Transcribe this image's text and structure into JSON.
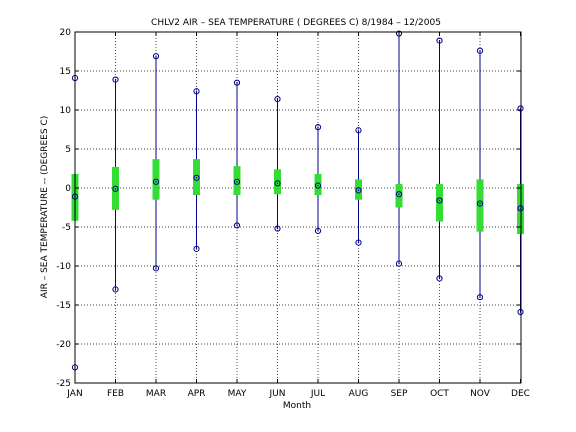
{
  "chart_data": {
    "type": "box",
    "title": "CHLV2  AIR – SEA TEMPERATURE ( DEGREES C) 8/1984 – 12/2005",
    "xlabel": "Month",
    "ylabel": "AIR – SEA TEMPERATURE -- (DEGREES C)",
    "ylim": [
      -25,
      20
    ],
    "yticks": [
      -25,
      -20,
      -15,
      -10,
      -5,
      0,
      5,
      10,
      15,
      20
    ],
    "grid": true,
    "categories": [
      "JAN",
      "FEB",
      "MAR",
      "APR",
      "MAY",
      "JUN",
      "JUL",
      "AUG",
      "SEP",
      "OCT",
      "NOV",
      "DEC"
    ],
    "max": [
      14.1,
      13.9,
      16.9,
      12.4,
      13.5,
      11.4,
      7.8,
      7.4,
      19.8,
      18.9,
      17.6,
      10.2
    ],
    "q3": [
      1.8,
      2.7,
      3.7,
      3.7,
      2.8,
      2.4,
      1.8,
      1.1,
      0.5,
      0.5,
      1.1,
      0.5
    ],
    "median": [
      -1.1,
      -0.1,
      0.8,
      1.3,
      0.8,
      0.6,
      0.3,
      -0.3,
      -0.8,
      -1.6,
      -2.0,
      -2.6
    ],
    "q1": [
      -4.2,
      -2.8,
      -1.5,
      -0.9,
      -0.9,
      -0.8,
      -0.9,
      -1.5,
      -2.5,
      -4.3,
      -5.6,
      -5.9
    ],
    "min": [
      -23.0,
      -13.0,
      -10.3,
      -7.8,
      -4.8,
      -5.2,
      -5.5,
      -7.0,
      -9.7,
      -11.6,
      -14.0,
      -15.9
    ],
    "colors": {
      "whisker": "#00008b",
      "box": "#33dd33",
      "marker": "#00008b",
      "grid": "#000000"
    }
  }
}
